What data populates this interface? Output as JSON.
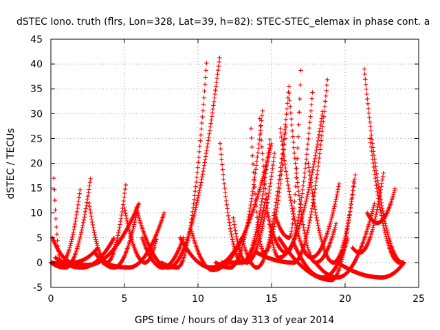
{
  "chart_data": {
    "type": "scatter",
    "title": "dSTEC Iono. truth (flrs, Lon=328, Lat=39, h=82): STEC-STEC_elemax in phase cont. a",
    "xlabel": "GPS time / hours of day 313 of year 2014",
    "ylabel": "dSTEC  / TECUs",
    "xlim": [
      0,
      25
    ],
    "ylim": [
      -5,
      45
    ],
    "xticks": [
      0,
      5,
      10,
      15,
      20,
      25
    ],
    "yticks": [
      -5,
      0,
      5,
      10,
      15,
      20,
      25,
      30,
      35,
      40,
      45
    ],
    "grid": true,
    "marker": "plus",
    "color": "#ff0000",
    "arcs": [
      {
        "t0": 0.1,
        "t1": 3.2,
        "tmin": 1.5,
        "peakStart": 5,
        "peakEnd": 3,
        "dip": 0
      },
      {
        "t0": 0.2,
        "t1": 2.0,
        "tmin": 0.7,
        "peakStart": 17,
        "peakEnd": 15,
        "dip": 0
      },
      {
        "t0": 0.0,
        "t1": 2.7,
        "tmin": 1.0,
        "peakStart": 0,
        "peakEnd": 17,
        "dip": -1
      },
      {
        "t0": 0.3,
        "t1": 4.3,
        "tmin": 2.1,
        "peakStart": 1,
        "peakEnd": 5,
        "dip": -1
      },
      {
        "t0": 0.0,
        "t1": 6.0,
        "tmin": 2.5,
        "peakStart": 0,
        "peakEnd": 12,
        "dip": -0.5
      },
      {
        "t0": 2.6,
        "t1": 5.1,
        "tmin": 3.8,
        "peakStart": 12,
        "peakEnd": 16,
        "dip": 0
      },
      {
        "t0": 3.0,
        "t1": 5.9,
        "tmin": 4.3,
        "peakStart": 2,
        "peakEnd": 11,
        "dip": -1
      },
      {
        "t0": 3.5,
        "t1": 7.7,
        "tmin": 5.3,
        "peakStart": 0,
        "peakEnd": 10,
        "dip": -1
      },
      {
        "t0": 5.0,
        "t1": 7.2,
        "tmin": 6.4,
        "peakStart": 11,
        "peakEnd": 5,
        "dip": 0
      },
      {
        "t0": 6.2,
        "t1": 9.0,
        "tmin": 7.6,
        "peakStart": 5,
        "peakEnd": 5,
        "dip": -1
      },
      {
        "t0": 5.8,
        "t1": 11.5,
        "tmin": 8.0,
        "peakStart": 11,
        "peakEnd": 42,
        "dip": -1
      },
      {
        "t0": 7.5,
        "t1": 10.6,
        "tmin": 8.6,
        "peakStart": 0,
        "peakEnd": 41,
        "dip": -1
      },
      {
        "t0": 8.8,
        "t1": 13.0,
        "tmin": 10.9,
        "peakStart": 5,
        "peakEnd": 5,
        "dip": -1
      },
      {
        "t0": 9.5,
        "t1": 15.0,
        "tmin": 11.0,
        "peakStart": 7,
        "peakEnd": 24,
        "dip": -1.5
      },
      {
        "t0": 11.5,
        "t1": 14.6,
        "tmin": 13.0,
        "peakStart": 24,
        "peakEnd": 13,
        "dip": 0
      },
      {
        "t0": 11.2,
        "t1": 14.4,
        "tmin": 12.2,
        "peakStart": 0,
        "peakEnd": 31,
        "dip": -1
      },
      {
        "t0": 11.6,
        "t1": 14.9,
        "tmin": 13.0,
        "peakStart": 0,
        "peakEnd": 25,
        "dip": 0
      },
      {
        "t0": 12.4,
        "t1": 15.2,
        "tmin": 13.3,
        "peakStart": 9,
        "peakEnd": 22,
        "dip": 0
      },
      {
        "t0": 13.6,
        "t1": 16.0,
        "tmin": 14.5,
        "peakStart": 27,
        "peakEnd": 28,
        "dip": 2
      },
      {
        "t0": 13.0,
        "t1": 16.2,
        "tmin": 14.0,
        "peakStart": 5,
        "peakEnd": 36,
        "dip": -1
      },
      {
        "t0": 14.2,
        "t1": 18.5,
        "tmin": 15.5,
        "peakStart": 29,
        "peakEnd": 31,
        "dip": 1
      },
      {
        "t0": 14.7,
        "t1": 17.8,
        "tmin": 16.0,
        "peakStart": 10,
        "peakEnd": 35,
        "dip": 2
      },
      {
        "t0": 15.2,
        "t1": 17.0,
        "tmin": 16.2,
        "peakStart": 10,
        "peakEnd": 40,
        "dip": 5
      },
      {
        "t0": 14.0,
        "t1": 18.8,
        "tmin": 16.5,
        "peakStart": 2,
        "peakEnd": 37,
        "dip": 0
      },
      {
        "t0": 15.6,
        "t1": 19.6,
        "tmin": 17.7,
        "peakStart": 27,
        "peakEnd": 16,
        "dip": 1
      },
      {
        "t0": 16.2,
        "t1": 19.4,
        "tmin": 18.0,
        "peakStart": 34,
        "peakEnd": 8,
        "dip": 0
      },
      {
        "t0": 15.5,
        "t1": 20.6,
        "tmin": 19.1,
        "peakStart": 5,
        "peakEnd": 17,
        "dip": -3.5
      },
      {
        "t0": 16.5,
        "t1": 20.2,
        "tmin": 18.5,
        "peakStart": 4,
        "peakEnd": 5,
        "dip": -3
      },
      {
        "t0": 18.0,
        "t1": 22.0,
        "tmin": 19.5,
        "peakStart": 0,
        "peakEnd": 12,
        "dip": -3
      },
      {
        "t0": 19.5,
        "t1": 24.0,
        "tmin": 22.5,
        "peakStart": 0,
        "peakEnd": 0,
        "dip": -3
      },
      {
        "t0": 21.3,
        "t1": 24.0,
        "tmin": 23.9,
        "peakStart": 39,
        "peakEnd": 0,
        "dip": 0
      },
      {
        "t0": 21.7,
        "t1": 24.0,
        "tmin": 23.7,
        "peakStart": 25,
        "peakEnd": 0,
        "dip": 0
      },
      {
        "t0": 20.5,
        "t1": 22.6,
        "tmin": 21.0,
        "peakStart": 3,
        "peakEnd": 18,
        "dip": 2
      },
      {
        "t0": 21.5,
        "t1": 23.4,
        "tmin": 22.2,
        "peakStart": 10,
        "peakEnd": 15,
        "dip": 8
      },
      {
        "t0": 17.5,
        "t1": 20.7,
        "tmin": 19.2,
        "peakStart": 20,
        "peakEnd": 18,
        "dip": 0
      }
    ]
  }
}
